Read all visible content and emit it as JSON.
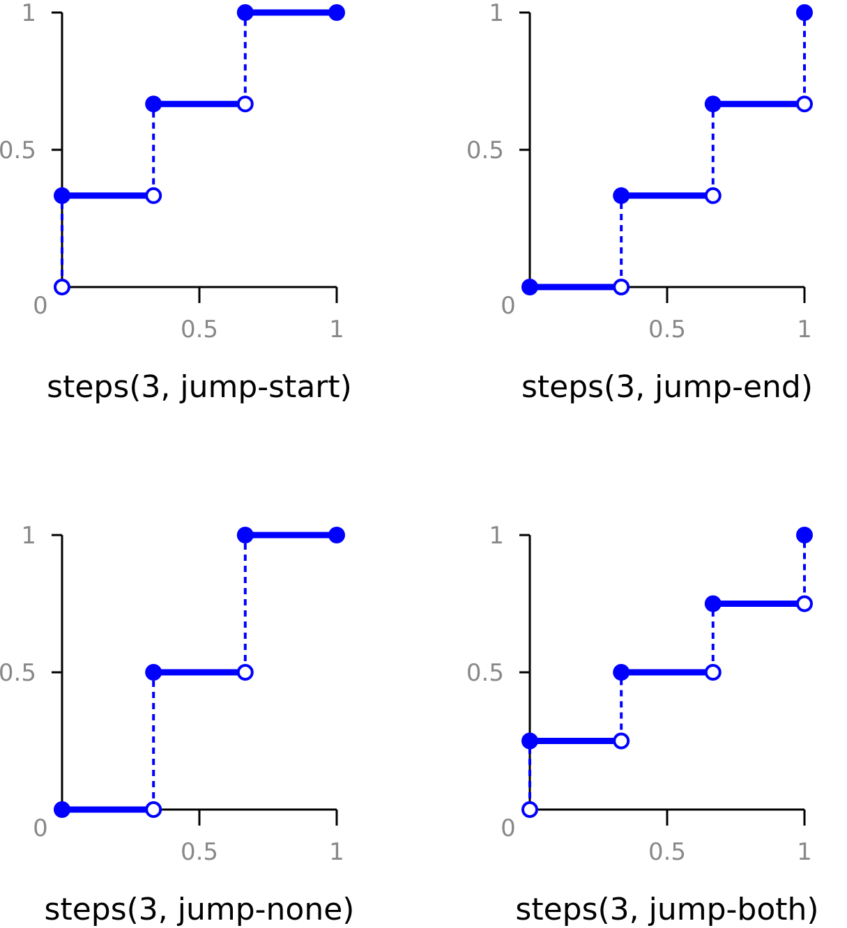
{
  "chart_data": [
    {
      "type": "step",
      "title": "steps(3, jump-start)",
      "xlim": [
        0,
        1
      ],
      "ylim": [
        0,
        1
      ],
      "xticks": [
        0.5,
        1
      ],
      "yticks": [
        0,
        0.5,
        1
      ],
      "color": "#0000ff",
      "series": [
        {
          "x": [
            [
              0,
              0.333
            ],
            [
              0.333,
              0.667
            ],
            [
              0.667,
              1
            ]
          ],
          "values": [
            0.333,
            0.667,
            1
          ]
        }
      ],
      "filled_points": {
        "x": [
          0,
          0.333,
          0.667,
          1
        ],
        "y": [
          0.333,
          0.667,
          1,
          1
        ]
      },
      "open_points": {
        "x": [
          0,
          0.333,
          0.667
        ],
        "y": [
          0,
          0.333,
          0.667
        ]
      }
    },
    {
      "type": "step",
      "title": "steps(3, jump-end)",
      "xlim": [
        0,
        1
      ],
      "ylim": [
        0,
        1
      ],
      "xticks": [
        0.5,
        1
      ],
      "yticks": [
        0,
        0.5,
        1
      ],
      "color": "#0000ff",
      "series": [
        {
          "x": [
            [
              0,
              0.333
            ],
            [
              0.333,
              0.667
            ],
            [
              0.667,
              1
            ]
          ],
          "values": [
            0,
            0.333,
            0.667
          ]
        }
      ],
      "filled_points": {
        "x": [
          0,
          0.333,
          0.667,
          1
        ],
        "y": [
          0,
          0.333,
          0.667,
          1
        ]
      },
      "open_points": {
        "x": [
          0.333,
          0.667,
          1
        ],
        "y": [
          0,
          0.333,
          0.667
        ]
      }
    },
    {
      "type": "step",
      "title": "steps(3, jump-none)",
      "xlim": [
        0,
        1
      ],
      "ylim": [
        0,
        1
      ],
      "xticks": [
        0.5,
        1
      ],
      "yticks": [
        0,
        0.5,
        1
      ],
      "color": "#0000ff",
      "series": [
        {
          "x": [
            [
              0,
              0.333
            ],
            [
              0.333,
              0.667
            ],
            [
              0.667,
              1
            ]
          ],
          "values": [
            0,
            0.5,
            1
          ]
        }
      ],
      "filled_points": {
        "x": [
          0,
          0.333,
          0.667,
          1
        ],
        "y": [
          0,
          0.5,
          1,
          1
        ]
      },
      "open_points": {
        "x": [
          0.333,
          0.667
        ],
        "y": [
          0,
          0.5
        ]
      }
    },
    {
      "type": "step",
      "title": "steps(3, jump-both)",
      "xlim": [
        0,
        1
      ],
      "ylim": [
        0,
        1
      ],
      "xticks": [
        0.5,
        1
      ],
      "yticks": [
        0,
        0.5,
        1
      ],
      "color": "#0000ff",
      "series": [
        {
          "x": [
            [
              0,
              0.333
            ],
            [
              0.333,
              0.667
            ],
            [
              0.667,
              1
            ]
          ],
          "values": [
            0.25,
            0.5,
            0.75
          ]
        }
      ],
      "filled_points": {
        "x": [
          0,
          0.333,
          0.667,
          1
        ],
        "y": [
          0.25,
          0.5,
          0.75,
          1
        ]
      },
      "open_points": {
        "x": [
          0,
          0.333,
          0.667,
          1
        ],
        "y": [
          0,
          0.25,
          0.5,
          0.75
        ]
      }
    }
  ]
}
